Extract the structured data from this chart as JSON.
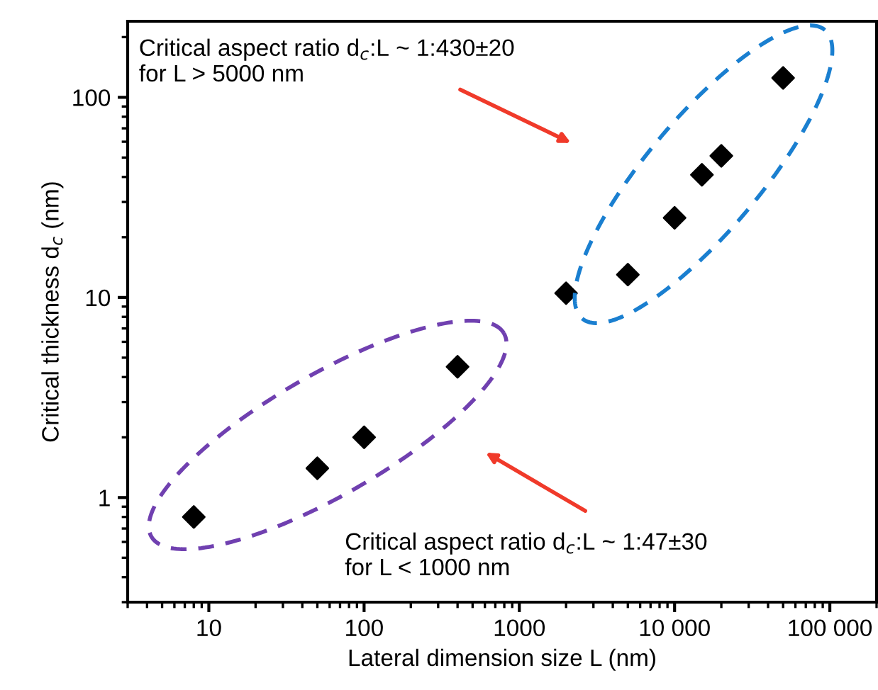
{
  "chart_data": {
    "type": "scatter",
    "xlabel": "Lateral dimension size L (nm)",
    "ylabel": "Critical thickness d$_{c}$ (nm)",
    "x": [
      8,
      50,
      100,
      400,
      2000,
      5000,
      10000,
      15000,
      20000,
      50000
    ],
    "series": [
      {
        "color": "#000000",
        "values": [
          0.8,
          1.4,
          2,
          4.5,
          10.5,
          13,
          25,
          41,
          51,
          125
        ]
      }
    ],
    "annotations": [
      "Critical aspect ratio d$_{c}$:L ~ 1:430±20\nfor L > 5000 nm",
      "Critical aspect ratio d$_{c}$:L ~ 1:47±30\nfor L < 1000 nm"
    ],
    "log": "xy",
    "xlim": [
      3,
      200000
    ],
    "ylim": [
      0.3,
      240
    ],
    "xticks": [
      10,
      100,
      1000,
      {
        "value": 10000,
        "label": "10 000"
      },
      {
        "value": 100000,
        "label": "100 000"
      }
    ],
    "yticks": [
      1,
      10,
      100
    ],
    "marker": "diamond",
    "grid": false,
    "legend": false
  }
}
